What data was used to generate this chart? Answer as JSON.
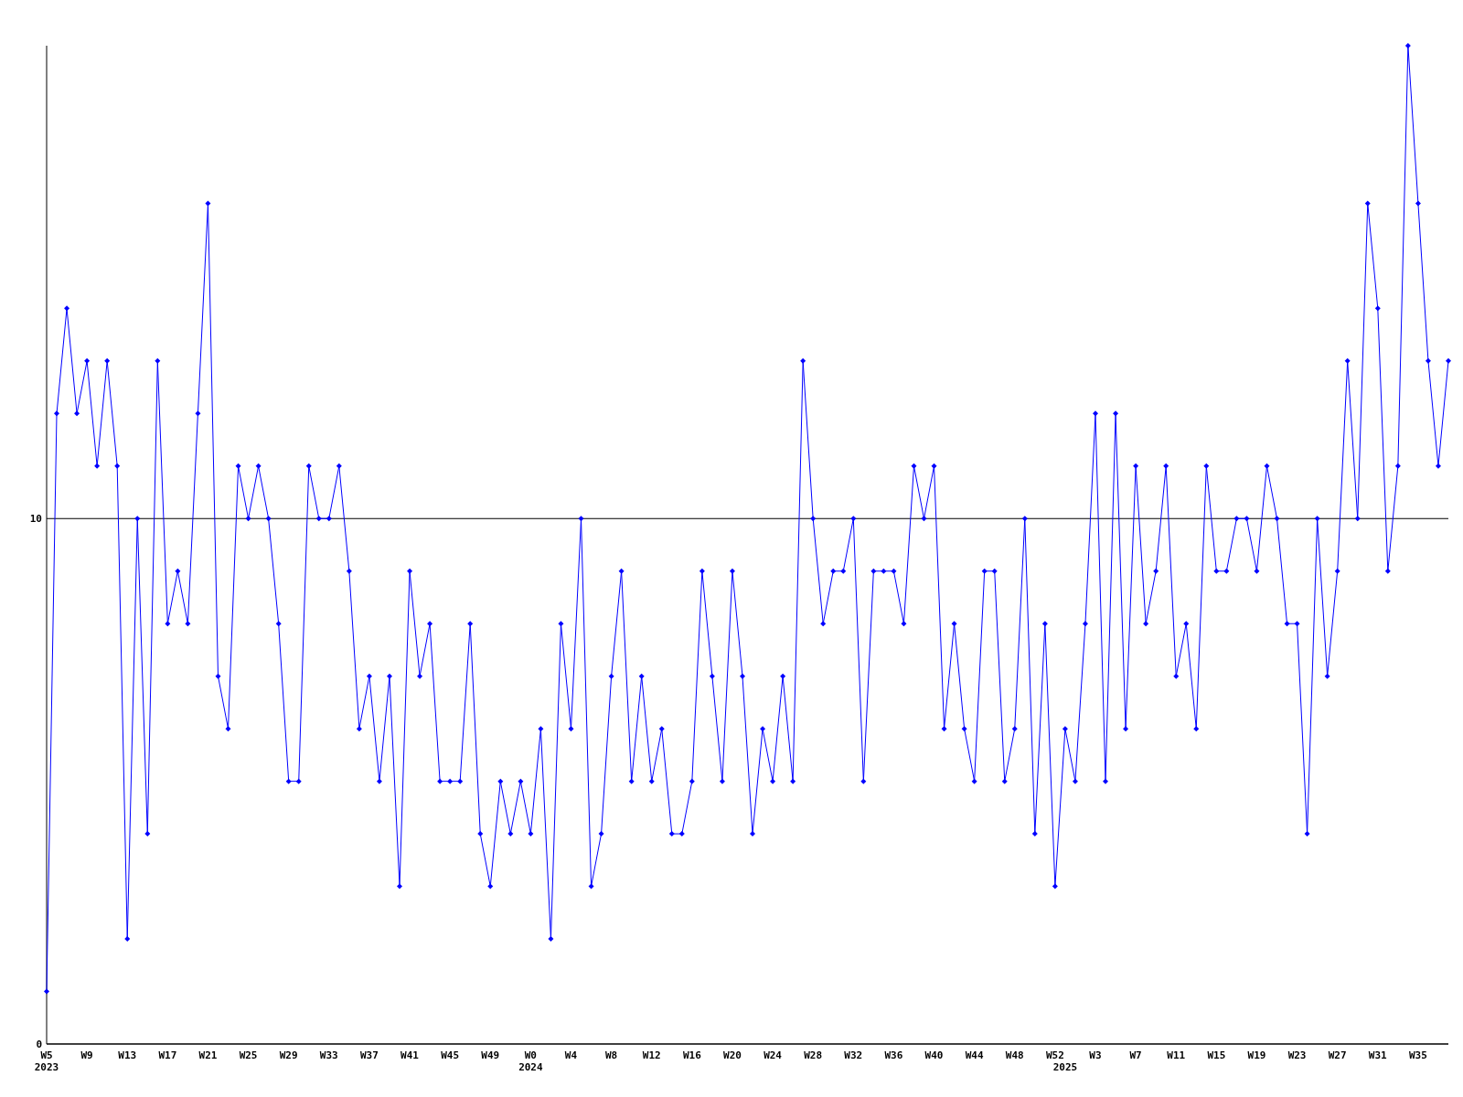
{
  "chart_data": {
    "type": "line",
    "categories": [
      "W5\n2023",
      null,
      null,
      null,
      "W9",
      null,
      null,
      null,
      "W13",
      null,
      null,
      null,
      "W17",
      null,
      null,
      null,
      "W21",
      null,
      null,
      null,
      "W25",
      null,
      null,
      null,
      "W29",
      null,
      null,
      null,
      "W33",
      null,
      null,
      null,
      "W37",
      null,
      null,
      null,
      "W41",
      null,
      null,
      null,
      "W45",
      null,
      null,
      null,
      "W49",
      null,
      null,
      null,
      "W0\n2024",
      null,
      null,
      null,
      "W4",
      null,
      null,
      null,
      "W8",
      null,
      null,
      null,
      "W12",
      null,
      null,
      null,
      "W16",
      null,
      null,
      null,
      "W20",
      null,
      null,
      null,
      "W24",
      null,
      null,
      null,
      "W28",
      null,
      null,
      null,
      "W32",
      null,
      null,
      null,
      "W36",
      null,
      null,
      null,
      "W40",
      null,
      null,
      null,
      "W44",
      null,
      null,
      null,
      "W48",
      null,
      null,
      null,
      "W52",
      "\n2025",
      null,
      null,
      "W3",
      null,
      null,
      null,
      "W7",
      null,
      null,
      null,
      "W11",
      null,
      null,
      null,
      "W15",
      null,
      null,
      null,
      "W19",
      null,
      null,
      null,
      "W23",
      null,
      null,
      null,
      "W27",
      null,
      null,
      null,
      "W31",
      null,
      null,
      null,
      "W35",
      null,
      null,
      null
    ],
    "series": [
      {
        "color": "#0000ff",
        "values": [
          1,
          12,
          14,
          12,
          13,
          11,
          13,
          11,
          2,
          10,
          4,
          13,
          8,
          9,
          8,
          12,
          16,
          7,
          6,
          11,
          10,
          11,
          10,
          8,
          5,
          5,
          11,
          10,
          10,
          11,
          9,
          6,
          7,
          5,
          7,
          3,
          9,
          7,
          8,
          5,
          5,
          5,
          8,
          4,
          3,
          5,
          4,
          5,
          4,
          6,
          2,
          8,
          6,
          10,
          3,
          4,
          7,
          9,
          5,
          7,
          5,
          6,
          4,
          4,
          5,
          9,
          7,
          5,
          9,
          7,
          4,
          6,
          5,
          7,
          5,
          13,
          10,
          8,
          9,
          9,
          10,
          5,
          9,
          9,
          9,
          8,
          11,
          10,
          11,
          6,
          8,
          6,
          5,
          9,
          9,
          5,
          6,
          10,
          4,
          8,
          3,
          6,
          5,
          8,
          12,
          5,
          12,
          6,
          11,
          8,
          9,
          11,
          7,
          8,
          6,
          11,
          9,
          9,
          10,
          10,
          9,
          11,
          10,
          8,
          8,
          4,
          10,
          7,
          9,
          13,
          10,
          16,
          14,
          9,
          11,
          19,
          16,
          13,
          11,
          13
        ]
      }
    ],
    "ylim": [
      0,
      19
    ],
    "yticks": [
      0,
      10
    ],
    "grid": "y",
    "marker": "diamond",
    "line_style": "solid"
  }
}
